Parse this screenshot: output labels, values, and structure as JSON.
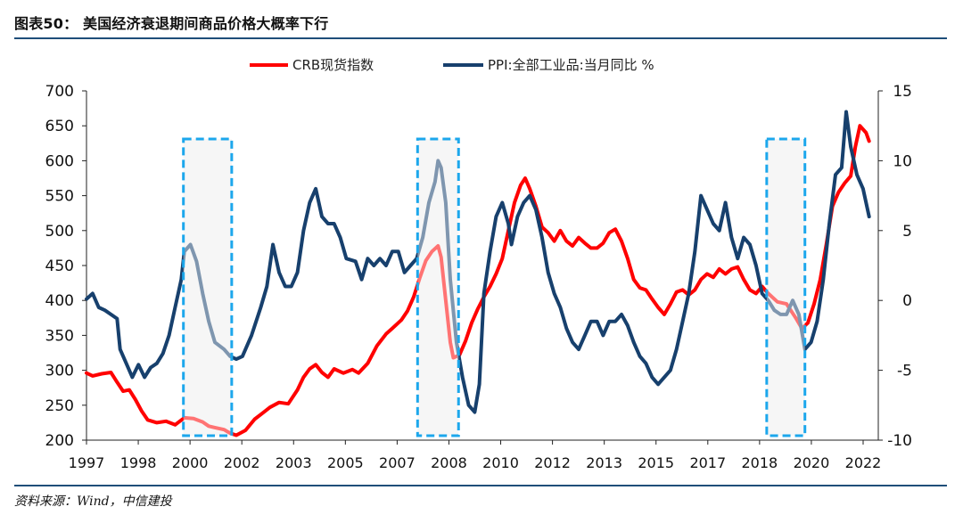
{
  "figure": {
    "title": "图表50： 美国经济衰退期间商品价格大概率下行",
    "source": "资料来源：Wind，中信建投"
  },
  "colors": {
    "crb": "#ff0000",
    "ppi": "#17406d",
    "rule": "#1f4e79",
    "recession_border": "#1ca7ec",
    "recession_fill": "#eeeeee"
  },
  "chart_data": {
    "type": "line",
    "x_labels": [
      "1997",
      "1998",
      "2000",
      "2002",
      "2003",
      "2005",
      "2007",
      "2008",
      "2010",
      "2012",
      "2013",
      "2015",
      "2017",
      "2018",
      "2020",
      "2022"
    ],
    "x_range": [
      1997,
      2022.9
    ],
    "y_left": {
      "ticks": [
        700,
        650,
        600,
        550,
        500,
        450,
        400,
        350,
        300,
        250,
        200
      ],
      "range": [
        200,
        700
      ]
    },
    "y_right": {
      "ticks": [
        15,
        10,
        5,
        0,
        -5,
        -10
      ],
      "range": [
        -10,
        15
      ]
    },
    "grid": false,
    "legend_position": "top-center",
    "recession_bands": [
      [
        2000.17,
        2001.75
      ],
      [
        2007.83,
        2009.17
      ],
      [
        2019.25,
        2020.5
      ]
    ],
    "series": [
      {
        "name": "CRB现货指数",
        "axis": "left",
        "points": [
          [
            1997.0,
            296
          ],
          [
            1997.2,
            292
          ],
          [
            1997.5,
            295
          ],
          [
            1997.8,
            297
          ],
          [
            1998.0,
            283
          ],
          [
            1998.2,
            270
          ],
          [
            1998.4,
            272
          ],
          [
            1998.6,
            258
          ],
          [
            1998.8,
            242
          ],
          [
            1999.0,
            229
          ],
          [
            1999.3,
            225
          ],
          [
            1999.6,
            227
          ],
          [
            1999.9,
            222
          ],
          [
            2000.2,
            232
          ],
          [
            2000.5,
            231
          ],
          [
            2000.8,
            226
          ],
          [
            2001.0,
            220
          ],
          [
            2001.2,
            218
          ],
          [
            2001.5,
            215
          ],
          [
            2001.7,
            210
          ],
          [
            2001.9,
            207
          ],
          [
            2002.2,
            214
          ],
          [
            2002.5,
            230
          ],
          [
            2002.8,
            240
          ],
          [
            2003.0,
            247
          ],
          [
            2003.3,
            254
          ],
          [
            2003.6,
            252
          ],
          [
            2003.9,
            272
          ],
          [
            2004.1,
            290
          ],
          [
            2004.3,
            302
          ],
          [
            2004.5,
            308
          ],
          [
            2004.7,
            297
          ],
          [
            2004.9,
            290
          ],
          [
            2005.1,
            302
          ],
          [
            2005.4,
            296
          ],
          [
            2005.7,
            301
          ],
          [
            2005.9,
            296
          ],
          [
            2006.2,
            310
          ],
          [
            2006.5,
            335
          ],
          [
            2006.8,
            352
          ],
          [
            2007.0,
            360
          ],
          [
            2007.3,
            372
          ],
          [
            2007.5,
            385
          ],
          [
            2007.7,
            405
          ],
          [
            2007.9,
            432
          ],
          [
            2008.1,
            457
          ],
          [
            2008.3,
            470
          ],
          [
            2008.5,
            478
          ],
          [
            2008.6,
            462
          ],
          [
            2008.75,
            400
          ],
          [
            2008.9,
            340
          ],
          [
            2009.0,
            318
          ],
          [
            2009.2,
            322
          ],
          [
            2009.4,
            342
          ],
          [
            2009.6,
            368
          ],
          [
            2009.8,
            388
          ],
          [
            2010.0,
            405
          ],
          [
            2010.2,
            420
          ],
          [
            2010.4,
            438
          ],
          [
            2010.6,
            460
          ],
          [
            2010.8,
            500
          ],
          [
            2011.0,
            540
          ],
          [
            2011.2,
            565
          ],
          [
            2011.35,
            575
          ],
          [
            2011.5,
            560
          ],
          [
            2011.7,
            535
          ],
          [
            2011.9,
            505
          ],
          [
            2012.1,
            497
          ],
          [
            2012.3,
            485
          ],
          [
            2012.5,
            500
          ],
          [
            2012.7,
            485
          ],
          [
            2012.9,
            478
          ],
          [
            2013.1,
            490
          ],
          [
            2013.3,
            482
          ],
          [
            2013.5,
            475
          ],
          [
            2013.7,
            475
          ],
          [
            2013.9,
            482
          ],
          [
            2014.1,
            497
          ],
          [
            2014.3,
            502
          ],
          [
            2014.5,
            485
          ],
          [
            2014.7,
            460
          ],
          [
            2014.9,
            430
          ],
          [
            2015.1,
            418
          ],
          [
            2015.3,
            415
          ],
          [
            2015.5,
            402
          ],
          [
            2015.7,
            390
          ],
          [
            2015.9,
            380
          ],
          [
            2016.1,
            395
          ],
          [
            2016.3,
            412
          ],
          [
            2016.5,
            415
          ],
          [
            2016.7,
            408
          ],
          [
            2016.9,
            415
          ],
          [
            2017.1,
            430
          ],
          [
            2017.3,
            438
          ],
          [
            2017.5,
            433
          ],
          [
            2017.7,
            445
          ],
          [
            2017.9,
            438
          ],
          [
            2018.1,
            445
          ],
          [
            2018.3,
            448
          ],
          [
            2018.5,
            430
          ],
          [
            2018.7,
            415
          ],
          [
            2018.9,
            410
          ],
          [
            2019.1,
            420
          ],
          [
            2019.3,
            410
          ],
          [
            2019.6,
            398
          ],
          [
            2019.9,
            395
          ],
          [
            2020.2,
            375
          ],
          [
            2020.4,
            360
          ],
          [
            2020.6,
            368
          ],
          [
            2020.8,
            395
          ],
          [
            2021.0,
            430
          ],
          [
            2021.2,
            480
          ],
          [
            2021.4,
            535
          ],
          [
            2021.6,
            555
          ],
          [
            2021.8,
            568
          ],
          [
            2022.0,
            578
          ],
          [
            2022.15,
            620
          ],
          [
            2022.3,
            650
          ],
          [
            2022.5,
            640
          ],
          [
            2022.6,
            628
          ]
        ]
      },
      {
        "name": "PPI:全部工业品:当月同比 %",
        "axis": "right",
        "points": [
          [
            1997.0,
            0.1
          ],
          [
            1997.2,
            0.5
          ],
          [
            1997.4,
            -0.5
          ],
          [
            1997.6,
            -0.7
          ],
          [
            1997.8,
            -1.0
          ],
          [
            1998.0,
            -1.3
          ],
          [
            1998.1,
            -3.5
          ],
          [
            1998.3,
            -4.5
          ],
          [
            1998.5,
            -5.5
          ],
          [
            1998.7,
            -4.6
          ],
          [
            1998.9,
            -5.5
          ],
          [
            1999.1,
            -4.8
          ],
          [
            1999.3,
            -4.5
          ],
          [
            1999.5,
            -3.8
          ],
          [
            1999.7,
            -2.5
          ],
          [
            1999.9,
            -0.5
          ],
          [
            2000.1,
            1.5
          ],
          [
            2000.2,
            3.5
          ],
          [
            2000.4,
            4.0
          ],
          [
            2000.6,
            2.8
          ],
          [
            2000.8,
            0.5
          ],
          [
            2001.0,
            -1.5
          ],
          [
            2001.2,
            -3.0
          ],
          [
            2001.5,
            -3.5
          ],
          [
            2001.7,
            -4.0
          ],
          [
            2001.9,
            -4.2
          ],
          [
            2002.1,
            -4.0
          ],
          [
            2002.4,
            -2.5
          ],
          [
            2002.7,
            -0.5
          ],
          [
            2002.9,
            1.0
          ],
          [
            2003.1,
            4.0
          ],
          [
            2003.3,
            2.0
          ],
          [
            2003.5,
            1.0
          ],
          [
            2003.7,
            1.0
          ],
          [
            2003.9,
            2.0
          ],
          [
            2004.1,
            5.0
          ],
          [
            2004.3,
            7.0
          ],
          [
            2004.5,
            8.0
          ],
          [
            2004.7,
            6.0
          ],
          [
            2004.9,
            5.5
          ],
          [
            2005.1,
            5.5
          ],
          [
            2005.3,
            4.5
          ],
          [
            2005.5,
            3.0
          ],
          [
            2005.8,
            2.8
          ],
          [
            2006.0,
            1.5
          ],
          [
            2006.2,
            3.0
          ],
          [
            2006.4,
            2.5
          ],
          [
            2006.6,
            3.0
          ],
          [
            2006.8,
            2.5
          ],
          [
            2007.0,
            3.5
          ],
          [
            2007.2,
            3.5
          ],
          [
            2007.4,
            2.0
          ],
          [
            2007.6,
            2.5
          ],
          [
            2007.8,
            3.0
          ],
          [
            2008.0,
            4.5
          ],
          [
            2008.2,
            7.0
          ],
          [
            2008.4,
            8.5
          ],
          [
            2008.5,
            10.0
          ],
          [
            2008.6,
            9.5
          ],
          [
            2008.75,
            7.0
          ],
          [
            2008.9,
            1.5
          ],
          [
            2009.1,
            -3.0
          ],
          [
            2009.3,
            -5.5
          ],
          [
            2009.5,
            -7.5
          ],
          [
            2009.7,
            -8.0
          ],
          [
            2009.85,
            -6.0
          ],
          [
            2010.0,
            0.5
          ],
          [
            2010.2,
            3.5
          ],
          [
            2010.4,
            6.0
          ],
          [
            2010.6,
            7.0
          ],
          [
            2010.8,
            5.5
          ],
          [
            2010.9,
            4.0
          ],
          [
            2011.1,
            6.0
          ],
          [
            2011.3,
            7.0
          ],
          [
            2011.5,
            7.5
          ],
          [
            2011.7,
            6.5
          ],
          [
            2011.9,
            4.5
          ],
          [
            2012.1,
            2.0
          ],
          [
            2012.3,
            0.5
          ],
          [
            2012.5,
            -0.5
          ],
          [
            2012.7,
            -2.0
          ],
          [
            2012.9,
            -3.0
          ],
          [
            2013.1,
            -3.5
          ],
          [
            2013.3,
            -2.5
          ],
          [
            2013.5,
            -1.5
          ],
          [
            2013.7,
            -1.5
          ],
          [
            2013.9,
            -2.5
          ],
          [
            2014.1,
            -1.5
          ],
          [
            2014.3,
            -1.5
          ],
          [
            2014.5,
            -1.0
          ],
          [
            2014.7,
            -1.8
          ],
          [
            2014.9,
            -3.0
          ],
          [
            2015.1,
            -4.0
          ],
          [
            2015.3,
            -4.5
          ],
          [
            2015.5,
            -5.5
          ],
          [
            2015.7,
            -6.0
          ],
          [
            2015.9,
            -5.5
          ],
          [
            2016.1,
            -5.0
          ],
          [
            2016.3,
            -3.5
          ],
          [
            2016.5,
            -1.5
          ],
          [
            2016.7,
            0.5
          ],
          [
            2016.9,
            3.5
          ],
          [
            2017.1,
            7.5
          ],
          [
            2017.3,
            6.5
          ],
          [
            2017.5,
            5.5
          ],
          [
            2017.7,
            5.0
          ],
          [
            2017.9,
            7.0
          ],
          [
            2018.1,
            4.5
          ],
          [
            2018.3,
            3.0
          ],
          [
            2018.5,
            4.5
          ],
          [
            2018.7,
            4.0
          ],
          [
            2018.9,
            2.5
          ],
          [
            2019.1,
            0.5
          ],
          [
            2019.3,
            0.0
          ],
          [
            2019.5,
            -0.7
          ],
          [
            2019.7,
            -1.0
          ],
          [
            2019.9,
            -1.0
          ],
          [
            2020.1,
            0.0
          ],
          [
            2020.3,
            -1.0
          ],
          [
            2020.5,
            -3.5
          ],
          [
            2020.7,
            -3.0
          ],
          [
            2020.9,
            -1.5
          ],
          [
            2021.1,
            1.5
          ],
          [
            2021.3,
            5.5
          ],
          [
            2021.5,
            9.0
          ],
          [
            2021.7,
            9.5
          ],
          [
            2021.85,
            13.5
          ],
          [
            2022.0,
            11.0
          ],
          [
            2022.2,
            9.0
          ],
          [
            2022.4,
            8.0
          ],
          [
            2022.6,
            6.0
          ]
        ]
      }
    ]
  }
}
